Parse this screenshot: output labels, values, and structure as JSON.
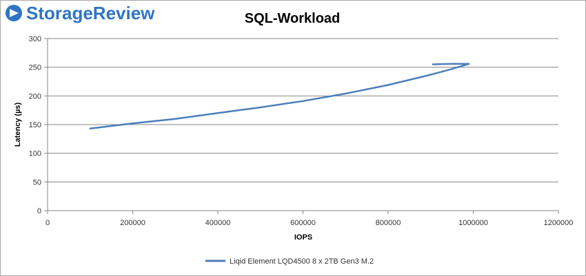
{
  "brand": {
    "name": "StorageReview"
  },
  "colors": {
    "brand": "#2f75c2",
    "series": "#4a7ebb",
    "grid": "#868686"
  },
  "chart_data": {
    "type": "line",
    "title": "SQL-Workload",
    "xlabel": "IOPS",
    "ylabel": "Latency (µs)",
    "xlim": [
      0,
      1200000
    ],
    "ylim": [
      0,
      300
    ],
    "xticks": [
      0,
      200000,
      400000,
      600000,
      800000,
      1000000,
      1200000
    ],
    "yticks": [
      0,
      50,
      100,
      150,
      200,
      250,
      300
    ],
    "grid": "horizontal",
    "legend_position": "bottom",
    "series": [
      {
        "name": "Liqid Element LQD4500 8 x 2TB Gen3 M.2",
        "x": [
          100000,
          200000,
          300000,
          400000,
          500000,
          600000,
          700000,
          800000,
          900000,
          950000,
          990000,
          950000,
          905000
        ],
        "y": [
          143,
          152,
          160,
          170,
          180,
          191,
          204,
          219,
          237,
          247,
          256,
          256,
          255
        ]
      }
    ]
  }
}
